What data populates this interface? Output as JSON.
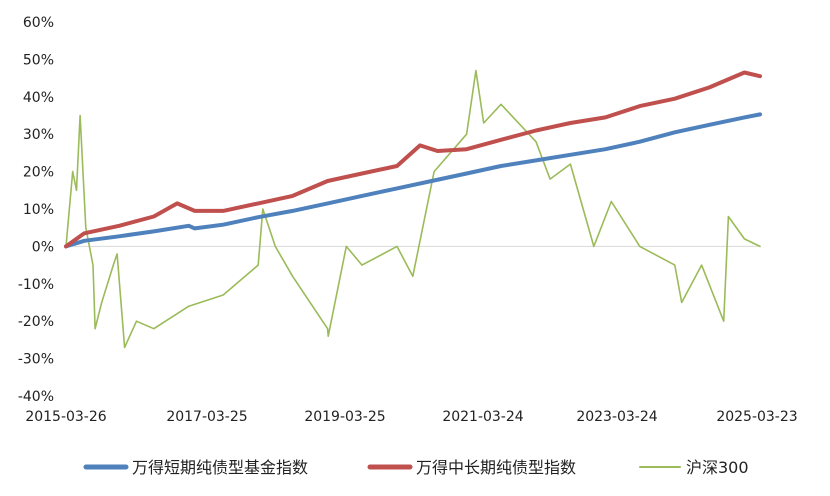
{
  "chart_data": {
    "type": "line",
    "title": "",
    "xlabel": "",
    "ylabel": "",
    "ylim": [
      -0.4,
      0.6
    ],
    "y_ticks": [
      -0.4,
      -0.3,
      -0.2,
      -0.1,
      0,
      0.1,
      0.2,
      0.3,
      0.4,
      0.5,
      0.6
    ],
    "y_tick_labels": [
      "-40%",
      "-30%",
      "-20%",
      "-10%",
      "0%",
      "10%",
      "20%",
      "30%",
      "40%",
      "50%",
      "60%"
    ],
    "x_tick_labels": [
      "2015-03-26",
      "2017-03-25",
      "2019-03-25",
      "2021-03-24",
      "2023-03-24",
      "2025-03-23"
    ],
    "x_range": [
      "2015-03-26",
      "2025-03-23"
    ],
    "grid": false,
    "legend_position": "bottom",
    "series": [
      {
        "name": "万得短期纯债型基金指数",
        "color": "#4F81BD",
        "points": [
          [
            "2015-03-26",
            0.0
          ],
          [
            "2015-06-30",
            0.015
          ],
          [
            "2015-12-31",
            0.027
          ],
          [
            "2016-06-30",
            0.04
          ],
          [
            "2016-12-31",
            0.055
          ],
          [
            "2017-01-31",
            0.048
          ],
          [
            "2017-06-30",
            0.058
          ],
          [
            "2017-12-31",
            0.078
          ],
          [
            "2018-06-30",
            0.095
          ],
          [
            "2018-12-31",
            0.115
          ],
          [
            "2019-06-30",
            0.135
          ],
          [
            "2019-12-31",
            0.155
          ],
          [
            "2020-06-30",
            0.175
          ],
          [
            "2020-12-31",
            0.195
          ],
          [
            "2021-06-30",
            0.215
          ],
          [
            "2021-12-31",
            0.23
          ],
          [
            "2022-06-30",
            0.245
          ],
          [
            "2022-12-31",
            0.26
          ],
          [
            "2023-06-30",
            0.28
          ],
          [
            "2023-12-31",
            0.305
          ],
          [
            "2024-06-30",
            0.325
          ],
          [
            "2024-12-31",
            0.345
          ],
          [
            "2025-03-23",
            0.353
          ]
        ]
      },
      {
        "name": "万得中长期纯债型指数",
        "color": "#C0504D",
        "points": [
          [
            "2015-03-26",
            0.0
          ],
          [
            "2015-06-30",
            0.035
          ],
          [
            "2015-12-31",
            0.055
          ],
          [
            "2016-06-30",
            0.08
          ],
          [
            "2016-10-31",
            0.115
          ],
          [
            "2017-01-31",
            0.095
          ],
          [
            "2017-06-30",
            0.095
          ],
          [
            "2017-12-31",
            0.115
          ],
          [
            "2018-06-30",
            0.135
          ],
          [
            "2018-12-31",
            0.175
          ],
          [
            "2019-06-30",
            0.195
          ],
          [
            "2019-12-31",
            0.215
          ],
          [
            "2020-04-30",
            0.27
          ],
          [
            "2020-07-31",
            0.255
          ],
          [
            "2020-12-31",
            0.26
          ],
          [
            "2021-06-30",
            0.285
          ],
          [
            "2021-12-31",
            0.31
          ],
          [
            "2022-06-30",
            0.33
          ],
          [
            "2022-12-31",
            0.345
          ],
          [
            "2023-06-30",
            0.375
          ],
          [
            "2023-12-31",
            0.395
          ],
          [
            "2024-06-30",
            0.425
          ],
          [
            "2024-12-31",
            0.465
          ],
          [
            "2025-03-23",
            0.455
          ]
        ]
      },
      {
        "name": "沪深300",
        "color": "#9BBB59",
        "points": [
          [
            "2015-03-26",
            0.0
          ],
          [
            "2015-04-30",
            0.2
          ],
          [
            "2015-05-20",
            0.15
          ],
          [
            "2015-06-08",
            0.35
          ],
          [
            "2015-07-08",
            0.05
          ],
          [
            "2015-08-15",
            -0.05
          ],
          [
            "2015-08-26",
            -0.22
          ],
          [
            "2015-09-30",
            -0.15
          ],
          [
            "2015-11-30",
            -0.05
          ],
          [
            "2015-12-20",
            -0.02
          ],
          [
            "2016-01-28",
            -0.27
          ],
          [
            "2016-03-31",
            -0.2
          ],
          [
            "2016-06-30",
            -0.22
          ],
          [
            "2016-12-31",
            -0.16
          ],
          [
            "2017-06-30",
            -0.13
          ],
          [
            "2017-12-31",
            -0.05
          ],
          [
            "2018-01-24",
            0.1
          ],
          [
            "2018-03-31",
            0.0
          ],
          [
            "2018-06-30",
            -0.08
          ],
          [
            "2018-12-31",
            -0.22
          ],
          [
            "2019-01-03",
            -0.24
          ],
          [
            "2019-04-08",
            0.0
          ],
          [
            "2019-06-30",
            -0.05
          ],
          [
            "2019-12-31",
            0.0
          ],
          [
            "2020-03-23",
            -0.08
          ],
          [
            "2020-07-13",
            0.2
          ],
          [
            "2020-12-31",
            0.3
          ],
          [
            "2021-02-18",
            0.47
          ],
          [
            "2021-03-31",
            0.33
          ],
          [
            "2021-06-30",
            0.38
          ],
          [
            "2021-12-31",
            0.28
          ],
          [
            "2022-03-15",
            0.18
          ],
          [
            "2022-06-30",
            0.22
          ],
          [
            "2022-10-31",
            0.0
          ],
          [
            "2023-01-31",
            0.12
          ],
          [
            "2023-06-30",
            0.0
          ],
          [
            "2023-12-31",
            -0.05
          ],
          [
            "2024-02-05",
            -0.15
          ],
          [
            "2024-05-20",
            -0.05
          ],
          [
            "2024-09-13",
            -0.2
          ],
          [
            "2024-10-08",
            0.08
          ],
          [
            "2024-12-31",
            0.02
          ],
          [
            "2025-03-23",
            0.0
          ]
        ]
      }
    ]
  }
}
